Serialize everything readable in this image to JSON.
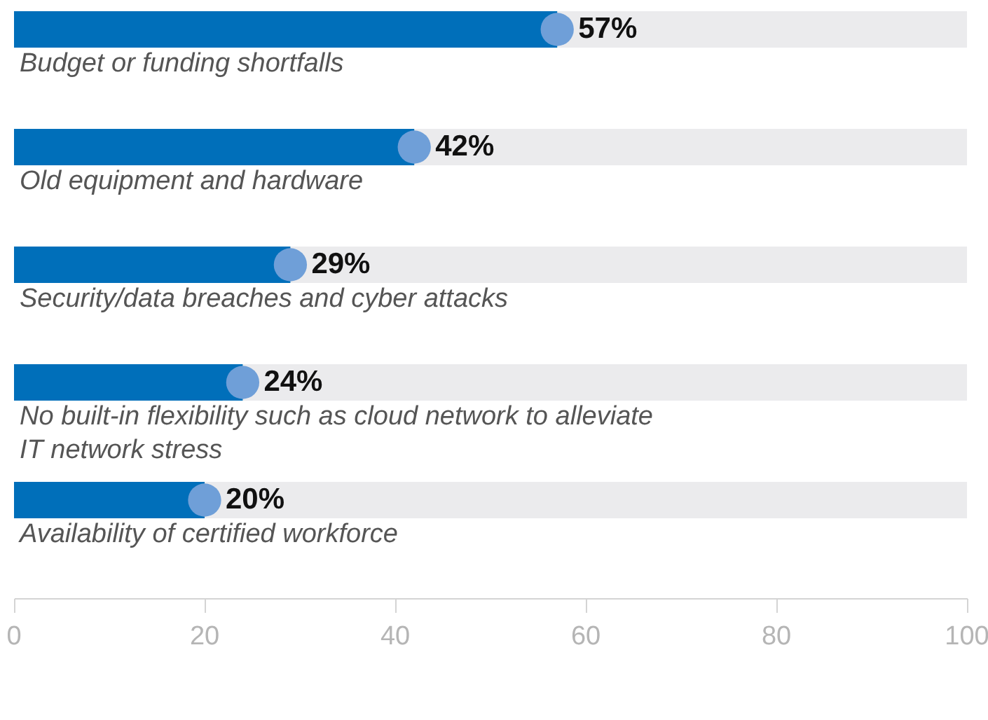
{
  "chart_data": {
    "type": "bar",
    "orientation": "horizontal",
    "categories": [
      "Budget or funding shortfalls",
      "Old equipment and hardware",
      "Security/data breaches and cyber attacks",
      "No built-in flexibility such as cloud network to alleviate IT network stress",
      "Availability of certified workforce"
    ],
    "series": [
      {
        "color": "#006fba",
        "values": [
          57,
          42,
          29,
          24,
          20
        ],
        "value_labels": [
          "57%",
          "42%",
          "29%",
          "24%",
          "20%"
        ]
      },
      {
        "type": "scatter",
        "color": "#6f9fd8",
        "marker": "circle",
        "x": [
          "Budget or funding shortfalls",
          "Old equipment and hardware",
          "Security/data breaches and cyber attacks",
          "No built-in flexibility such as cloud network to alleviate IT network stress",
          "Availability of certified workforce"
        ],
        "values": [
          57,
          42,
          29,
          24,
          20
        ]
      }
    ],
    "xlim": [
      0,
      100
    ],
    "xticks": [
      0,
      20,
      40,
      60,
      80,
      100
    ],
    "grid": false
  }
}
